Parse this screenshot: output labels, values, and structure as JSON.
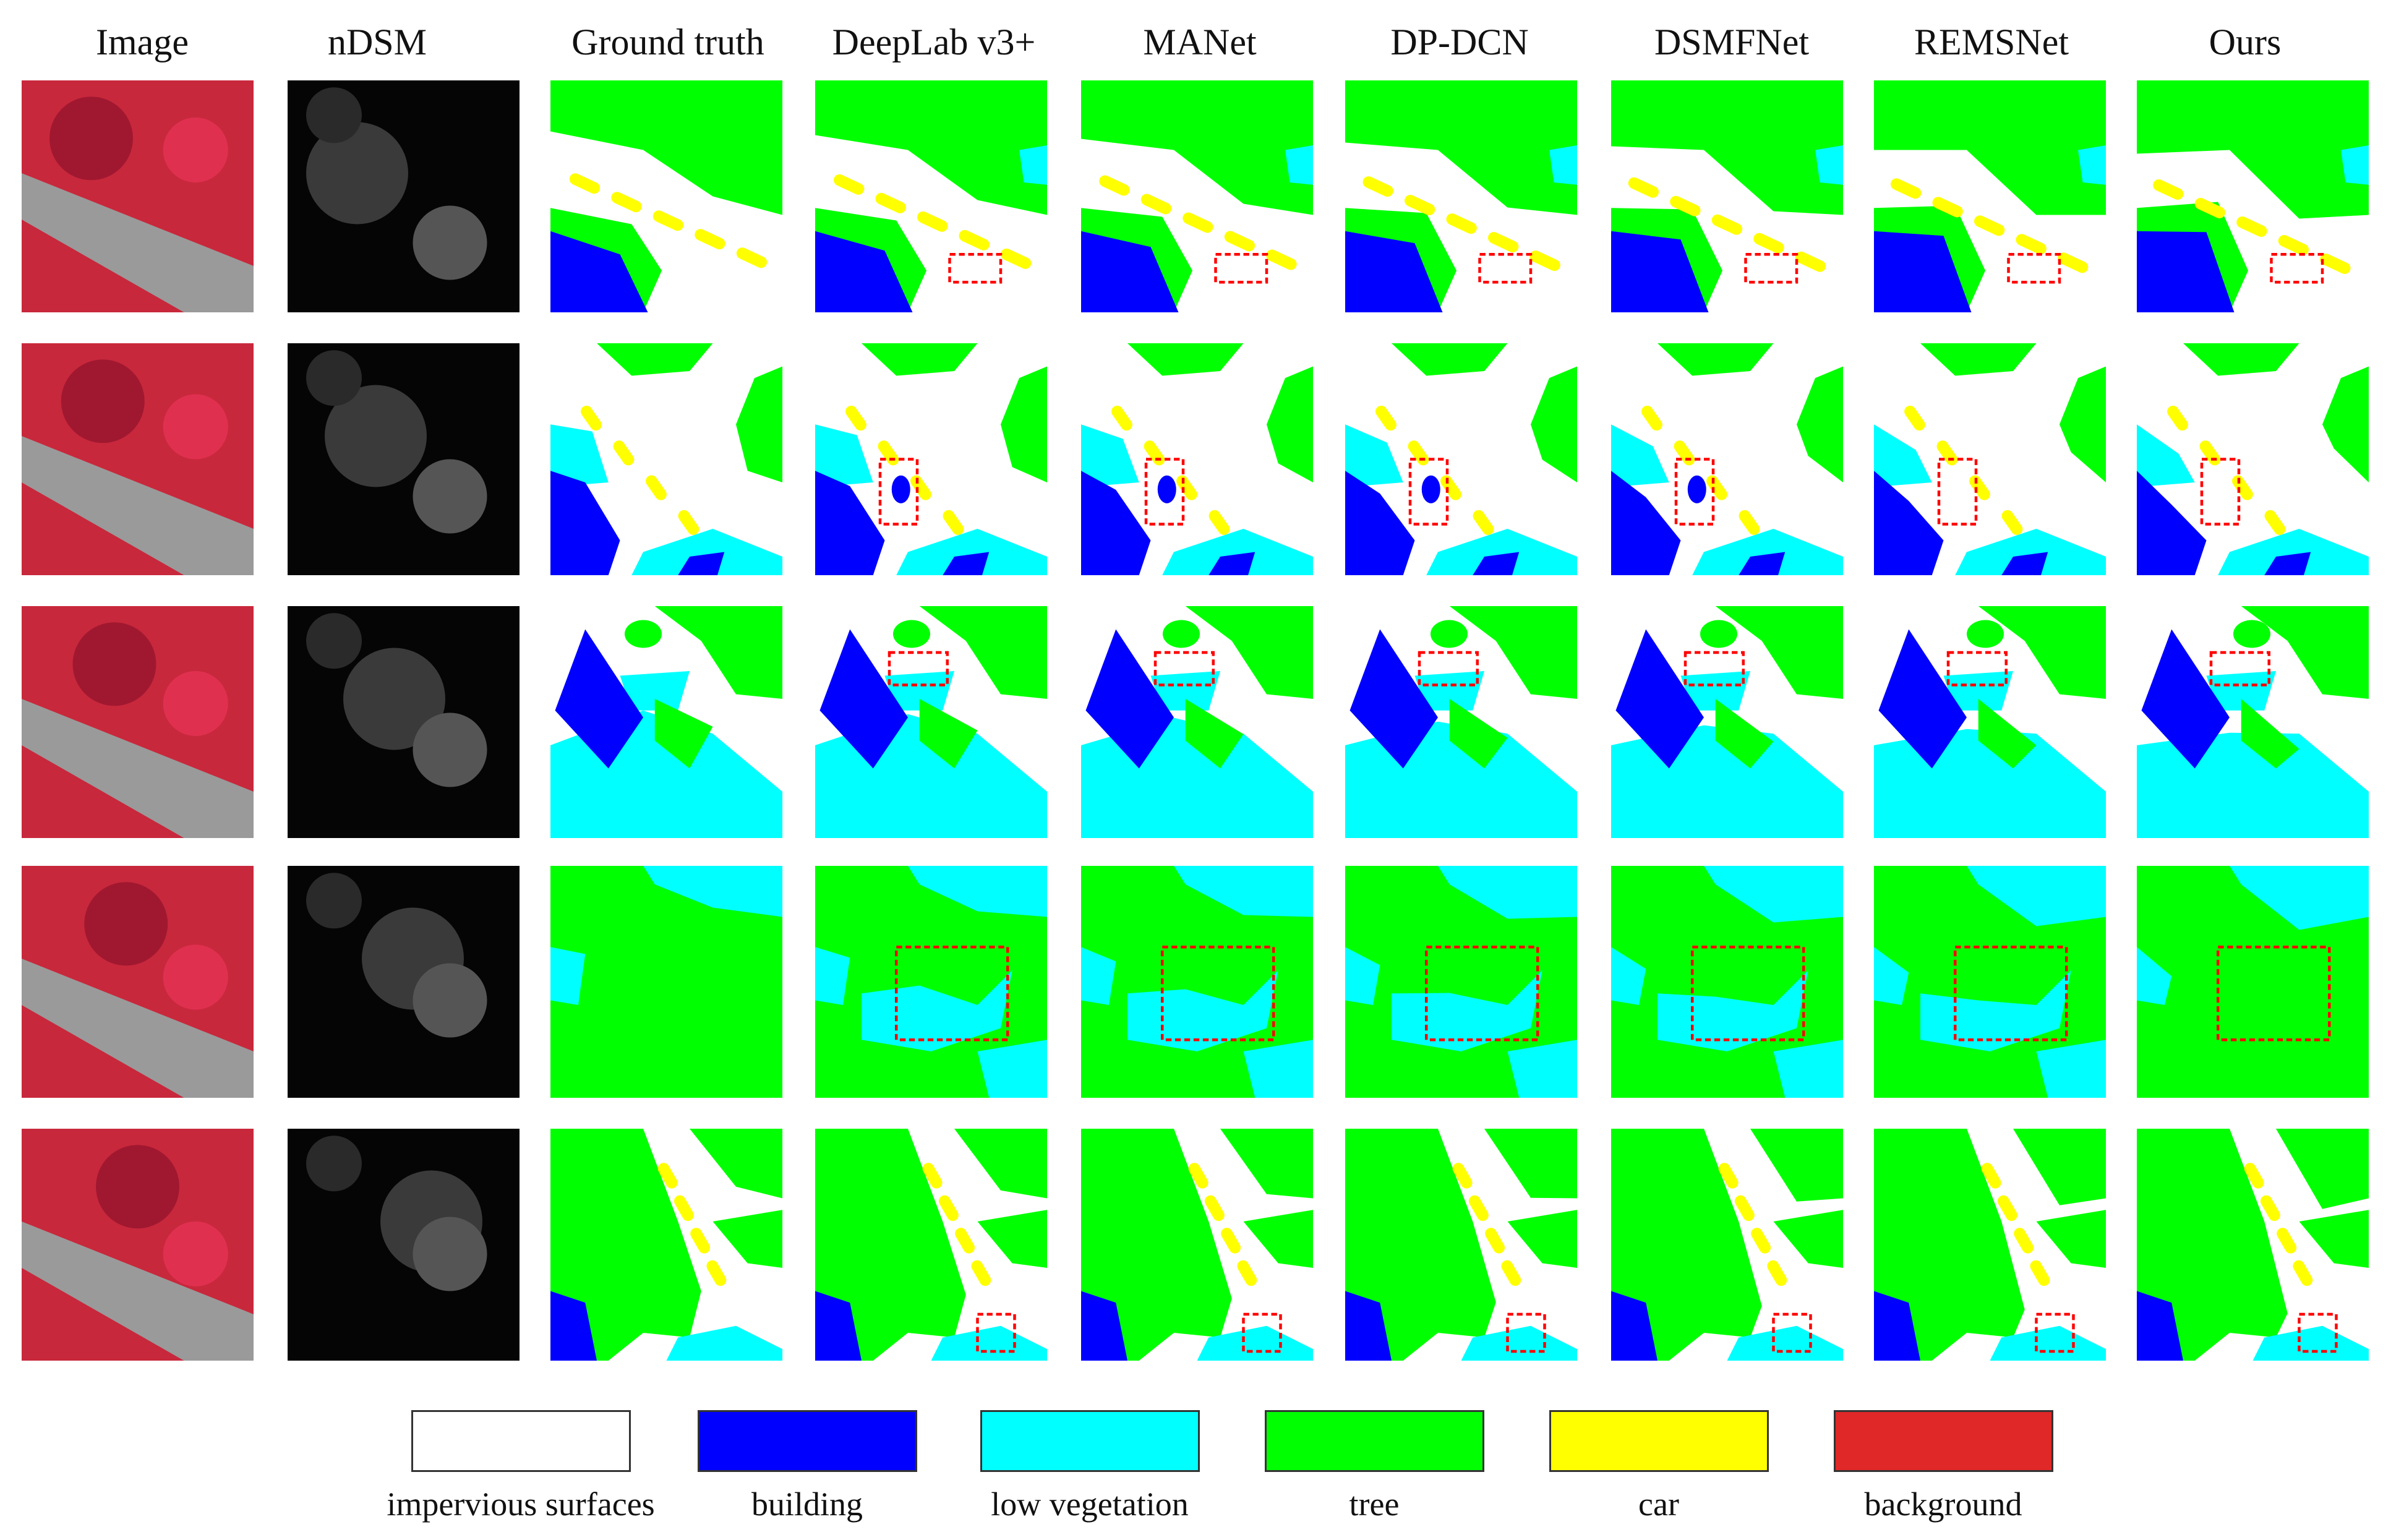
{
  "figure": {
    "columns": [
      "Image",
      "nDSM",
      "Ground truth",
      "DeepLab v3+",
      "MANet",
      "DP-DCN",
      "DSMFNet",
      "REMSNet",
      "Ours"
    ],
    "row_count": 5
  },
  "legend": [
    {
      "label": "impervious surfaces",
      "color": "#ffffff"
    },
    {
      "label": "building",
      "color": "#0000ff"
    },
    {
      "label": "low vegetation",
      "color": "#00ffff"
    },
    {
      "label": "tree",
      "color": "#00ff00"
    },
    {
      "label": "car",
      "color": "#ffff00"
    },
    {
      "label": "background",
      "color": "#e02828"
    }
  ],
  "colors": {
    "impervious": "#ffffff",
    "building": "#0000ff",
    "low_vegetation": "#00ffff",
    "tree": "#00ff00",
    "car": "#ffff00",
    "highlight_box": "#ff0000",
    "irrg_vegetation": "#c8283c",
    "irrg_road": "#9a9a9a"
  }
}
